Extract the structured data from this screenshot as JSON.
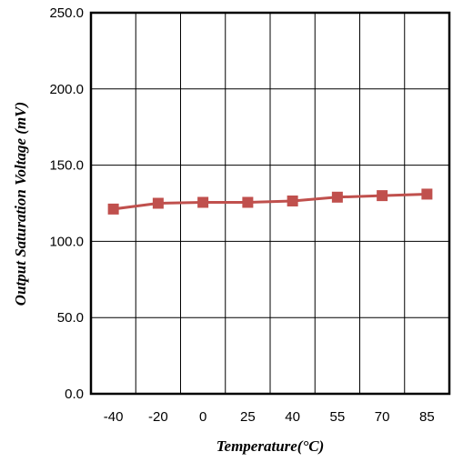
{
  "chart_data": {
    "type": "line",
    "title": "",
    "xlabel": "Temperature(°C)",
    "ylabel": "Output Saturation  Voltage (mV)",
    "categories": [
      "-40",
      "-20",
      "0",
      "25",
      "40",
      "55",
      "70",
      "85"
    ],
    "series": [
      {
        "values": [
          121.2,
          125.0,
          125.6,
          125.6,
          126.5,
          129.0,
          130.0,
          131.0
        ],
        "color": "#c0504d",
        "marker": "square"
      }
    ],
    "y_ticks": [
      "0.0",
      "50.0",
      "100.0",
      "150.0",
      "200.0",
      "250.0"
    ],
    "ylim": [
      0,
      250
    ],
    "grid": true,
    "legend": "none"
  }
}
